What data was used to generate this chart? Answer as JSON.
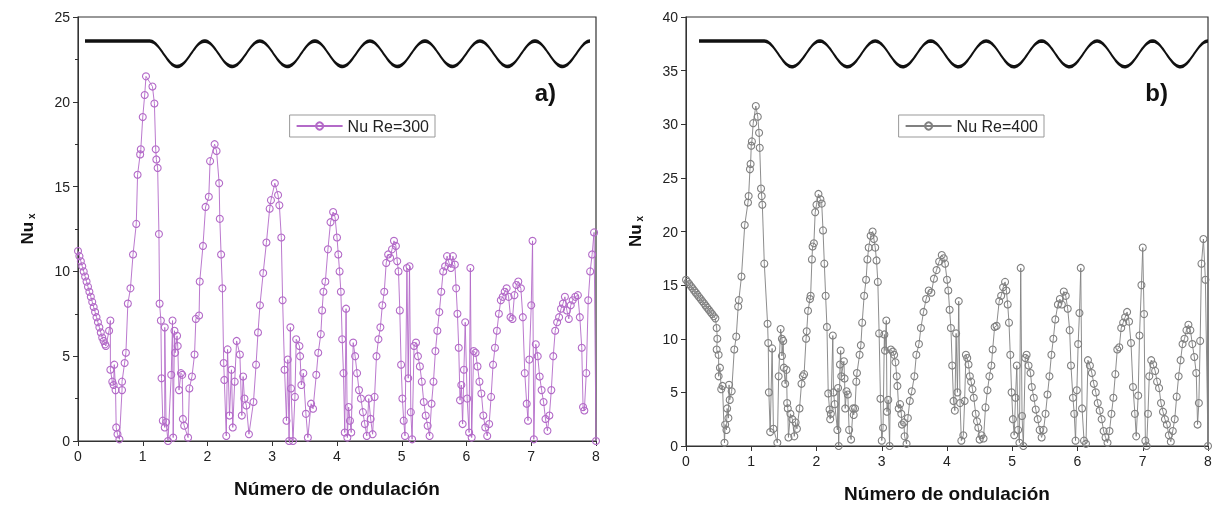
{
  "chart_data": [
    {
      "type": "line",
      "xlabel": "Número de ondulación",
      "ylabel": "Nu$_{x}$",
      "annotations": [
        "a)"
      ],
      "xlim": [
        0,
        8
      ],
      "xticks": [
        0,
        1,
        2,
        3,
        4,
        5,
        6,
        7,
        8
      ],
      "ylim": [
        0,
        25
      ],
      "yticks": [
        0,
        5,
        10,
        15,
        20,
        25
      ],
      "grid": false,
      "legend": "top right",
      "marker": "circle",
      "line_style": "solid",
      "series": [
        {
          "name": "Nu Re=300",
          "color": "#b36ac8",
          "x": [
            0,
            0.022,
            0.044,
            0.066,
            0.088,
            0.11,
            0.132,
            0.154,
            0.176,
            0.198,
            0.22,
            0.242,
            0.264,
            0.286,
            0.308,
            0.33,
            0.352,
            0.374,
            0.396,
            0.418,
            0.43,
            0.48,
            0.5,
            0.5,
            0.53,
            0.55,
            0.56,
            0.58,
            0.59,
            0.61,
            0.64,
            0.68,
            0.68,
            0.72,
            0.74,
            0.77,
            0.81,
            0.85,
            0.9,
            0.92,
            0.96,
            0.97,
            1.0,
            1.03,
            1.05,
            1.15,
            1.18,
            1.2,
            1.21,
            1.23,
            1.25,
            1.26,
            1.28,
            1.29,
            1.31,
            1.34,
            1.34,
            1.36,
            1.39,
            1.44,
            1.46,
            1.47,
            1.49,
            1.5,
            1.53,
            1.54,
            1.56,
            1.59,
            1.61,
            1.62,
            1.64,
            1.7,
            1.72,
            1.76,
            1.8,
            1.82,
            1.87,
            1.88,
            1.93,
            1.97,
            2.02,
            2.04,
            2.11,
            2.14,
            2.18,
            2.19,
            2.21,
            2.23,
            2.25,
            2.26,
            2.29,
            2.31,
            2.34,
            2.37,
            2.39,
            2.42,
            2.45,
            2.5,
            2.53,
            2.55,
            2.57,
            2.6,
            2.64,
            2.71,
            2.75,
            2.78,
            2.81,
            2.86,
            2.91,
            2.96,
            2.98,
            3.04,
            3.09,
            3.11,
            3.14,
            3.16,
            3.19,
            3.22,
            3.24,
            3.26,
            3.28,
            3.29,
            3.32,
            3.35,
            3.37,
            3.42,
            3.43,
            3.45,
            3.48,
            3.52,
            3.55,
            3.6,
            3.63,
            3.68,
            3.71,
            3.75,
            3.77,
            3.79,
            3.82,
            3.86,
            3.9,
            3.94,
            3.97,
            4.0,
            4.02,
            4.04,
            4.06,
            4.08,
            4.1,
            4.12,
            4.14,
            4.16,
            4.18,
            4.2,
            4.22,
            4.25,
            4.28,
            4.31,
            4.34,
            4.37,
            4.4,
            4.43,
            4.46,
            4.49,
            4.52,
            4.55,
            4.58,
            4.61,
            4.64,
            4.67,
            4.7,
            4.73,
            4.76,
            4.79,
            4.82,
            4.85,
            4.88,
            4.91,
            4.93,
            4.95,
            4.97,
            4.99,
            5.01,
            5.03,
            5.05,
            5.08,
            5.1,
            5.12,
            5.14,
            5.16,
            5.19,
            5.22,
            5.25,
            5.28,
            5.31,
            5.34,
            5.37,
            5.4,
            5.43,
            5.46,
            5.49,
            5.52,
            5.55,
            5.58,
            5.61,
            5.64,
            5.67,
            5.7,
            5.73,
            5.76,
            5.79,
            5.82,
            5.84,
            5.86,
            5.88,
            5.9,
            5.92,
            5.94,
            5.96,
            5.98,
            6.01,
            6.04,
            6.06,
            6.08,
            6.11,
            6.14,
            6.17,
            6.2,
            6.23,
            6.26,
            6.29,
            6.32,
            6.35,
            6.38,
            6.41,
            6.44,
            6.47,
            6.5,
            6.53,
            6.56,
            6.59,
            6.62,
            6.65,
            6.68,
            6.71,
            6.74,
            6.77,
            6.8,
            6.84,
            6.87,
            6.9,
            6.93,
            6.95,
            6.97,
            7.0,
            7.02,
            7.04,
            7.07,
            7.1,
            7.13,
            7.16,
            7.19,
            7.22,
            7.25,
            7.28,
            7.31,
            7.34,
            7.37,
            7.4,
            7.43,
            7.46,
            7.49,
            7.52,
            7.55,
            7.58,
            7.61,
            7.64,
            7.68,
            7.72,
            7.75,
            7.78,
            7.8,
            7.82,
            7.85,
            7.88,
            7.91,
            7.94,
            7.97,
            8.0
          ],
          "values": [
            11.2,
            10.9,
            10.6,
            10.3,
            10.0,
            9.7,
            9.4,
            9.1,
            8.8,
            8.5,
            8.2,
            7.9,
            7.6,
            7.3,
            7.0,
            6.7,
            6.4,
            6.1,
            5.9,
            5.7,
            5.6,
            6.5,
            7.1,
            4.2,
            3.5,
            3.3,
            4.5,
            3.0,
            0.8,
            0.4,
            0.1,
            3.0,
            3.5,
            4.6,
            5.2,
            8.1,
            9.0,
            11.0,
            12.8,
            15.7,
            16.9,
            17.2,
            19.1,
            20.4,
            21.5,
            20.9,
            19.9,
            17.2,
            16.6,
            16.1,
            12.2,
            8.1,
            7.1,
            3.7,
            1.2,
            0.8,
            6.7,
            1.1,
            0,
            3.9,
            7.1,
            0.2,
            6.5,
            5.2,
            6.2,
            5.6,
            3.0,
            4.0,
            3.9,
            1.3,
            0.9,
            0.2,
            3.1,
            3.8,
            5.1,
            7.2,
            7.4,
            9.4,
            11.5,
            13.8,
            14.4,
            16.5,
            17.5,
            17.1,
            15.2,
            13.1,
            11.0,
            9.0,
            4.6,
            3.6,
            0.3,
            5.4,
            1.5,
            4.2,
            0.8,
            3.5,
            5.9,
            5.1,
            1.5,
            3.8,
            2.5,
            2.1,
            0.4,
            2.3,
            4.5,
            6.4,
            8.0,
            9.9,
            11.7,
            13.7,
            14.2,
            15.2,
            14.5,
            13.9,
            12.0,
            8.3,
            4.2,
            1.2,
            4.8,
            0,
            6.7,
            3.1,
            0,
            2.6,
            6.0,
            5.6,
            5.0,
            3.3,
            4.0,
            1.6,
            0.2,
            2.2,
            1.9,
            3.9,
            5.2,
            6.3,
            7.7,
            8.8,
            9.4,
            11.3,
            12.9,
            13.5,
            13.2,
            12.0,
            11.0,
            10.0,
            8.8,
            6.0,
            4.0,
            0.5,
            7.8,
            0.2,
            2.0,
            1.2,
            0.5,
            5.8,
            5.0,
            4.0,
            3.0,
            2.5,
            1.7,
            1.0,
            0.3,
            2.5,
            1.3,
            0.4,
            2.6,
            5.0,
            6.0,
            6.7,
            8.0,
            8.8,
            10.5,
            11.0,
            10.8,
            11.3,
            11.8,
            11.5,
            10.6,
            10.0,
            7.7,
            4.5,
            2.5,
            1.2,
            0.3,
            10.2,
            3.7,
            10.3,
            1.7,
            0.1,
            5.6,
            5.8,
            5.0,
            4.4,
            3.5,
            2.3,
            1.5,
            0.9,
            0.3,
            2.2,
            3.5,
            5.3,
            6.5,
            7.6,
            8.8,
            10.0,
            10.3,
            10.9,
            10.5,
            10.2,
            10.9,
            10.4,
            9.0,
            7.5,
            5.5,
            2.4,
            3.3,
            1.0,
            4.2,
            7.0,
            2.5,
            0.5,
            10.2,
            0.2,
            5.3,
            5.2,
            4.4,
            3.5,
            2.8,
            1.5,
            0.8,
            0.3,
            1.0,
            2.6,
            4.5,
            5.5,
            6.5,
            7.5,
            8.3,
            8.5,
            8.8,
            9.0,
            8.5,
            7.3,
            7.2,
            8.6,
            9.2,
            9.4,
            9.0,
            7.3,
            4.0,
            2.2,
            1.2,
            4.8,
            8.0,
            11.8,
            0.1,
            5.7,
            5.0,
            3.8,
            3.0,
            2.3,
            1.3,
            0.6,
            1.5,
            3.0,
            5.0,
            6.5,
            7.0,
            7.3,
            7.8,
            8.1,
            8.5,
            7.7,
            7.2,
            8.0,
            8.3,
            8.5,
            8.6,
            7.3,
            5.5,
            2.0,
            1.8,
            4.0,
            8.3,
            10.0,
            11.0,
            12.3,
            0
          ]
        }
      ]
    },
    {
      "type": "line",
      "xlabel": "Número de ondulación",
      "ylabel": "Nu$_{x}$",
      "annotations": [
        "b)"
      ],
      "xlim": [
        0,
        8
      ],
      "xticks": [
        0,
        1,
        2,
        3,
        4,
        5,
        6,
        7,
        8
      ],
      "ylim": [
        0,
        40
      ],
      "yticks": [
        0,
        5,
        10,
        15,
        20,
        25,
        30,
        35,
        40
      ],
      "grid": false,
      "legend": "top right",
      "marker": "circle",
      "line_style": "solid",
      "series": [
        {
          "name": "Nu Re=400",
          "color": "#808080",
          "x": [
            0,
            0.025,
            0.05,
            0.075,
            0.1,
            0.125,
            0.15,
            0.175,
            0.2,
            0.225,
            0.25,
            0.275,
            0.3,
            0.325,
            0.35,
            0.375,
            0.4,
            0.425,
            0.45,
            0.47,
            0.48,
            0.47,
            0.5,
            0.5,
            0.52,
            0.54,
            0.56,
            0.59,
            0.6,
            0.62,
            0.63,
            0.65,
            0.66,
            0.67,
            0.7,
            0.74,
            0.77,
            0.8,
            0.81,
            0.85,
            0.9,
            0.95,
            0.96,
            0.98,
            0.99,
            1.0,
            1.01,
            1.03,
            1.07,
            1.1,
            1.12,
            1.13,
            1.15,
            1.16,
            1.17,
            1.2,
            1.25,
            1.26,
            1.27,
            1.29,
            1.32,
            1.34,
            1.4,
            1.42,
            1.45,
            1.47,
            1.47,
            1.49,
            1.5,
            1.52,
            1.54,
            1.55,
            1.56,
            1.57,
            1.6,
            1.63,
            1.66,
            1.68,
            1.7,
            1.74,
            1.77,
            1.79,
            1.81,
            1.84,
            1.85,
            1.87,
            1.9,
            1.91,
            1.93,
            1.94,
            1.96,
            1.98,
            2.0,
            2.03,
            2.06,
            2.08,
            2.1,
            2.12,
            2.14,
            2.16,
            2.18,
            2.2,
            2.21,
            2.22,
            2.25,
            2.26,
            2.28,
            2.32,
            2.33,
            2.34,
            2.36,
            2.37,
            2.38,
            2.42,
            2.43,
            2.44,
            2.46,
            2.48,
            2.5,
            2.53,
            2.56,
            2.57,
            2.59,
            2.61,
            2.62,
            2.66,
            2.68,
            2.7,
            2.73,
            2.76,
            2.78,
            2.8,
            2.83,
            2.86,
            2.88,
            2.9,
            2.92,
            2.94,
            2.96,
            2.98,
            3.0,
            3.02,
            3.04,
            3.05,
            3.07,
            3.08,
            3.1,
            3.12,
            3.14,
            3.17,
            3.19,
            3.21,
            3.23,
            3.24,
            3.26,
            3.28,
            3.3,
            3.31,
            3.34,
            3.35,
            3.38,
            3.4,
            3.43,
            3.46,
            3.5,
            3.53,
            3.57,
            3.6,
            3.64,
            3.68,
            3.72,
            3.76,
            3.8,
            3.84,
            3.88,
            3.92,
            3.95,
            3.97,
            4.0,
            4.02,
            4.04,
            4.06,
            4.08,
            4.1,
            4.12,
            4.14,
            4.16,
            4.18,
            4.2,
            4.22,
            4.25,
            4.27,
            4.29,
            4.31,
            4.33,
            4.35,
            4.37,
            4.39,
            4.41,
            4.44,
            4.46,
            4.48,
            4.5,
            4.53,
            4.56,
            4.59,
            4.62,
            4.65,
            4.68,
            4.7,
            4.73,
            4.76,
            4.8,
            4.83,
            4.86,
            4.89,
            4.91,
            4.93,
            4.95,
            4.97,
            4.99,
            5.01,
            5.03,
            5.05,
            5.07,
            5.09,
            5.11,
            5.13,
            5.15,
            5.17,
            5.2,
            5.22,
            5.25,
            5.28,
            5.3,
            5.33,
            5.36,
            5.39,
            5.42,
            5.45,
            5.48,
            5.51,
            5.54,
            5.57,
            5.6,
            5.63,
            5.66,
            5.7,
            5.73,
            5.76,
            5.79,
            5.82,
            5.85,
            5.88,
            5.9,
            5.93,
            5.95,
            5.97,
            5.99,
            6.01,
            6.03,
            6.05,
            6.07,
            6.1,
            6.13,
            6.16,
            6.19,
            6.22,
            6.25,
            6.28,
            6.31,
            6.34,
            6.37,
            6.4,
            6.43,
            6.46,
            6.49,
            6.52,
            6.55,
            6.58,
            6.61,
            6.64,
            6.67,
            6.7,
            6.73,
            6.76,
            6.79,
            6.82,
            6.85,
            6.88,
            6.9,
            6.93,
            6.95,
            6.98,
            7.0,
            7.02,
            7.04,
            7.06,
            7.08,
            7.1,
            7.13,
            7.16,
            7.19,
            7.22,
            7.25,
            7.28,
            7.31,
            7.34,
            7.37,
            7.4,
            7.43,
            7.46,
            7.49,
            7.52,
            7.55,
            7.58,
            7.61,
            7.64,
            7.67,
            7.7,
            7.73,
            7.76,
            7.79,
            7.82,
            7.84,
            7.86,
            7.88,
            7.9,
            7.93,
            7.96,
            8.0
          ],
          "values": [
            15.5,
            15.3,
            15.1,
            14.9,
            14.7,
            14.5,
            14.3,
            14.1,
            13.9,
            13.7,
            13.5,
            13.3,
            13.1,
            12.9,
            12.7,
            12.5,
            12.3,
            12.1,
            11.9,
            11.0,
            10.0,
            9.0,
            8.5,
            6.5,
            7.3,
            5.3,
            5.6,
            0.3,
            2.0,
            1.5,
            3.5,
            2.6,
            5.7,
            4.3,
            5.1,
            9.0,
            10.2,
            13.0,
            13.6,
            15.8,
            20.6,
            22.7,
            23.3,
            25.8,
            26.3,
            28.0,
            28.4,
            30.1,
            31.7,
            30.7,
            29.2,
            27.8,
            24.0,
            23.3,
            22.5,
            17.0,
            11.4,
            9.6,
            5.0,
            1.3,
            9.1,
            1.6,
            0.3,
            6.5,
            10.9,
            10.0,
            8.4,
            9.8,
            7.3,
            5.8,
            7.1,
            4.0,
            3.5,
            0.8,
            3.0,
            2.5,
            0.9,
            2.2,
            1.6,
            3.5,
            5.8,
            6.5,
            6.7,
            10.0,
            10.7,
            12.6,
            13.7,
            14.0,
            17.4,
            18.6,
            18.9,
            21.8,
            22.5,
            23.5,
            23.0,
            22.6,
            20.1,
            17.0,
            14.0,
            11.1,
            4.9,
            3.4,
            2.5,
            3.0,
            10.3,
            5.0,
            3.9,
            1.5,
            5.4,
            0,
            7.6,
            8.9,
            6.5,
            7.9,
            6.3,
            3.5,
            5.1,
            4.8,
            1.5,
            0.6,
            3.5,
            2.9,
            3.5,
            6.0,
            6.8,
            8.5,
            9.4,
            11.5,
            14.0,
            15.5,
            17.4,
            18.5,
            19.6,
            20.0,
            19.3,
            18.5,
            17.3,
            15.3,
            10.5,
            4.4,
            0.5,
            1.7,
            10.4,
            8.9,
            11.7,
            3.2,
            4.3,
            0,
            9.0,
            8.8,
            8.5,
            7.8,
            6.5,
            5.6,
            3.5,
            3.9,
            3.0,
            2.0,
            2.2,
            0.9,
            0.2,
            2.6,
            4.2,
            5.1,
            6.5,
            8.5,
            9.5,
            11.0,
            12.5,
            13.7,
            14.5,
            14.3,
            15.6,
            16.4,
            17.2,
            17.8,
            17.5,
            17.0,
            15.5,
            14.5,
            12.7,
            11.0,
            7.5,
            4.2,
            3.3,
            10.5,
            5.0,
            13.5,
            4.0,
            0.5,
            1.0,
            4.2,
            8.5,
            8.2,
            7.6,
            6.5,
            6.0,
            5.3,
            4.5,
            3.0,
            2.3,
            1.7,
            0.6,
            1.0,
            0.7,
            3.6,
            5.2,
            6.5,
            7.5,
            9.0,
            11.1,
            11.2,
            13.5,
            14.0,
            14.8,
            15.3,
            14.5,
            13.2,
            11.5,
            8.5,
            5.0,
            2.5,
            1.0,
            4.5,
            7.5,
            1.5,
            0.3,
            16.6,
            2.8,
            0,
            8.2,
            8.5,
            7.5,
            6.8,
            5.5,
            4.5,
            3.4,
            2.5,
            1.5,
            0.8,
            1.5,
            3.0,
            4.8,
            6.5,
            8.5,
            10.0,
            11.8,
            13.2,
            13.7,
            13.2,
            14.4,
            14.0,
            12.8,
            10.8,
            7.5,
            4.5,
            3.0,
            0.5,
            5.2,
            9.5,
            12.4,
            16.6,
            3.5,
            0.5,
            0.2,
            8.0,
            7.5,
            6.8,
            5.8,
            5.0,
            4.0,
            3.3,
            2.5,
            1.4,
            0.8,
            0.3,
            1.4,
            3.0,
            4.5,
            6.7,
            9.0,
            9.2,
            11.0,
            11.5,
            12.0,
            12.5,
            11.6,
            9.6,
            5.5,
            3.0,
            0.9,
            4.7,
            10.3,
            15.0,
            18.5,
            12.3,
            0.5,
            0,
            3.0,
            6.5,
            8.0,
            7.6,
            7.0,
            6.0,
            5.4,
            4.0,
            3.2,
            2.5,
            2.0,
            1.0,
            0.4,
            1.4,
            2.5,
            4.6,
            6.5,
            8.0,
            9.5,
            10.0,
            10.8,
            11.3,
            10.8,
            9.5,
            8.3,
            6.8,
            2.0,
            4.0,
            9.8,
            17.0,
            19.3,
            15.5,
            0
          ]
        }
      ]
    }
  ]
}
